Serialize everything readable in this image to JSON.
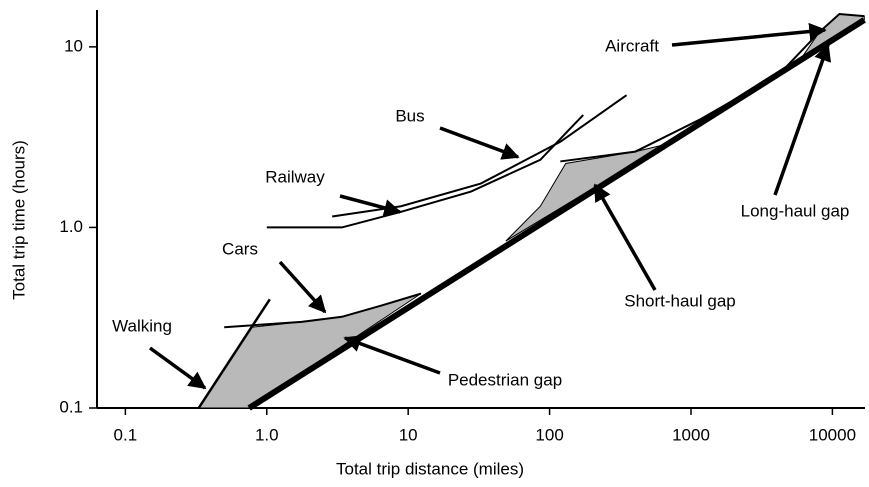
{
  "chart_data": {
    "type": "line",
    "xlabel": "Total trip distance (miles)",
    "ylabel": "Total trip time (hours)",
    "xscale": "log",
    "yscale": "log",
    "xlim": [
      0.063,
      17000
    ],
    "ylim": [
      0.1,
      16
    ],
    "xticks": [
      0.1,
      {
        "value": 1,
        "label": "1.0"
      },
      10,
      100,
      1000,
      10000
    ],
    "yticks": [
      0.1,
      {
        "value": 1,
        "label": "1.0"
      },
      10
    ],
    "color": "#000000",
    "region_color": "#b9b9b9",
    "series": [
      {
        "name": "Walking",
        "x": [
          0.33,
          1.05
        ],
        "y": [
          0.1,
          0.4
        ],
        "line_width": 2.5
      },
      {
        "name": "Cars",
        "x": [
          0.5,
          1.76,
          3.4,
          6.5,
          12.3
        ],
        "y": [
          0.28,
          0.3,
          0.32,
          0.37,
          0.43
        ],
        "line_width": 2
      },
      {
        "name": "Railway",
        "x": [
          1.0,
          3.4,
          8.9,
          27.8,
          86,
          173
        ],
        "y": [
          1.0,
          1.0,
          1.22,
          1.58,
          2.37,
          4.2
        ],
        "line_width": 2
      },
      {
        "name": "Bus",
        "x": [
          2.9,
          8.9,
          32.6,
          119,
          350
        ],
        "y": [
          1.15,
          1.31,
          1.75,
          2.98,
          5.4
        ],
        "line_width": 2
      },
      {
        "name": "Aircraft",
        "x": [
          119,
          404,
          1150,
          4240,
          8100,
          11200,
          16800
        ],
        "y": [
          2.32,
          2.63,
          3.95,
          7.1,
          12.1,
          15.2,
          14.8
        ],
        "line_width": 2
      },
      {
        "x": [
          0.75,
          16800
        ],
        "y": [
          0.1,
          14.1
        ],
        "line_width": 6
      }
    ],
    "regions": [
      {
        "x": [
          0.33,
          0.78,
          1.76,
          3.4,
          6.5,
          12.3,
          0.75
        ],
        "y": [
          0.1,
          0.28,
          0.3,
          0.32,
          0.37,
          0.43,
          0.1
        ]
      },
      {
        "x": [
          49,
          86,
          130,
          404,
          660
        ],
        "y": [
          0.84,
          1.31,
          2.26,
          2.63,
          2.88
        ]
      },
      {
        "x": [
          5870,
          8100,
          11200,
          16800,
          16800
        ],
        "y": [
          8.4,
          12.1,
          15.2,
          14.8,
          14.1
        ]
      }
    ],
    "annotations": [
      "Pedestrian gap",
      "Short-haul gap",
      "Long-haul gap"
    ]
  }
}
